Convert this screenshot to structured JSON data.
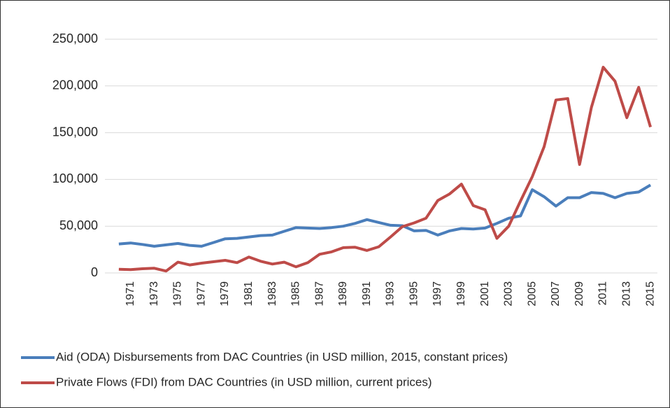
{
  "chart_data": {
    "type": "line",
    "categories": [
      null,
      "1971",
      null,
      "1973",
      null,
      "1975",
      null,
      "1977",
      null,
      "1979",
      null,
      "1981",
      null,
      "1983",
      null,
      "1985",
      null,
      "1987",
      null,
      "1989",
      null,
      "1991",
      null,
      "1993",
      null,
      "1995",
      null,
      "1997",
      null,
      "1999",
      null,
      "2001",
      null,
      "2003",
      null,
      "2005",
      null,
      "2007",
      null,
      "2009",
      null,
      "2011",
      null,
      "2013",
      null,
      "2015"
    ],
    "series": [
      {
        "name": "Aid (ODA) Disbursements from DAC Countries (in USD million, 2015, constant prices)",
        "color": "#4a7ebb",
        "values": [
          31000,
          32000,
          30500,
          28500,
          30000,
          31500,
          29500,
          28500,
          32500,
          36500,
          37000,
          38500,
          40000,
          40500,
          44500,
          48500,
          48000,
          47500,
          48500,
          50000,
          53000,
          57000,
          54000,
          51000,
          50500,
          45000,
          45500,
          40500,
          45000,
          47500,
          47000,
          48000,
          53000,
          58500,
          61000,
          89000,
          81500,
          71500,
          80500,
          80500,
          86000,
          85000,
          80500,
          85000,
          86500,
          94000
        ]
      },
      {
        "name": "Private Flows (FDI) from DAC Countries (in USD million, current prices)",
        "color": "#be4b48",
        "values": [
          4000,
          3500,
          4500,
          5000,
          2000,
          11500,
          8500,
          10500,
          12000,
          13500,
          11000,
          17000,
          12500,
          9500,
          11500,
          6500,
          11000,
          20000,
          22500,
          27000,
          27500,
          24000,
          28000,
          38500,
          49500,
          53500,
          58500,
          77500,
          84500,
          95000,
          72000,
          67500,
          37000,
          50000,
          77000,
          103000,
          135000,
          185000,
          186500,
          116000,
          177000,
          220000,
          205000,
          166000,
          198500,
          156000
        ]
      }
    ],
    "ylim": [
      0,
      250000
    ],
    "yticks": [
      0,
      {
        "value": 50000,
        "label": "50,000"
      },
      {
        "value": 100000,
        "label": "100,000"
      },
      {
        "value": 150000,
        "label": "150,000"
      },
      {
        "value": 200000,
        "label": "200,000"
      },
      {
        "value": 250000,
        "label": "250,000"
      }
    ],
    "grid": true,
    "legend": "bottom"
  }
}
